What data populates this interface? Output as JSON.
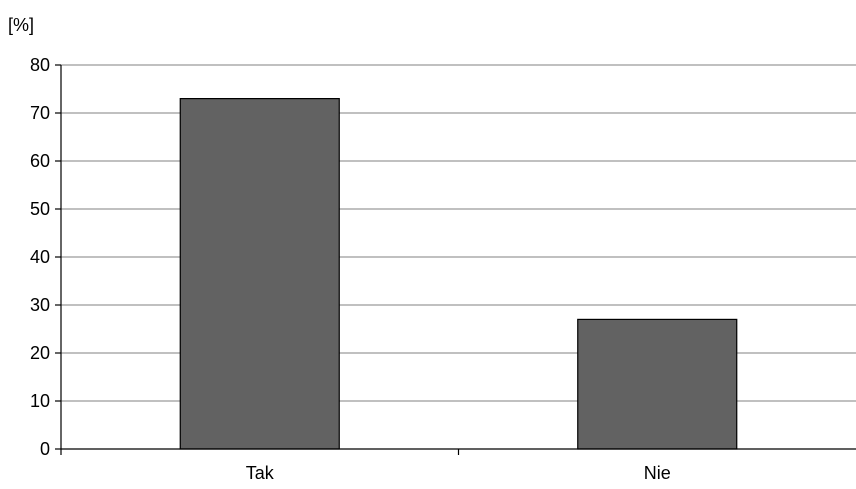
{
  "chart_data": {
    "type": "bar",
    "categories": [
      "Tak",
      "Nie"
    ],
    "values": [
      73,
      27
    ],
    "title": "",
    "xlabel": "",
    "ylabel": "[%]",
    "ylim": [
      0,
      80
    ],
    "yticks": [
      0,
      10,
      20,
      30,
      40,
      50,
      60,
      70,
      80
    ],
    "grid": true,
    "legend": "none",
    "colors": {
      "bar": "#626262",
      "bar_stroke": "#000000",
      "grid": "#808080",
      "axis": "#000000"
    }
  }
}
